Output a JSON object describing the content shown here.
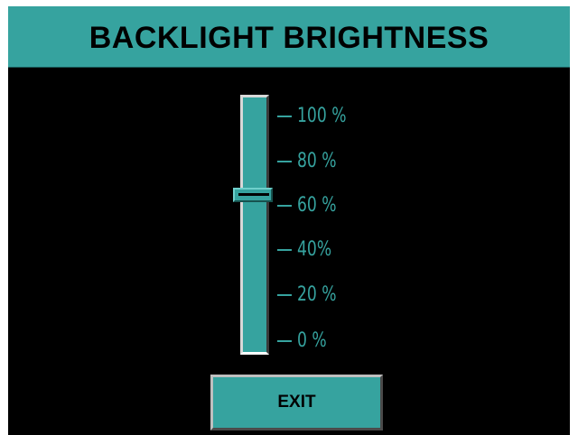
{
  "header": {
    "title": "BACKLIGHT BRIGHTNESS"
  },
  "brightness": {
    "level_percent": 65,
    "scale_labels": [
      "100 %",
      "80 %",
      "60 %",
      "40%",
      "20 %",
      "0 %"
    ]
  },
  "footer": {
    "exit_label": "EXIT"
  },
  "colors": {
    "accent": "#36a39f",
    "background": "#000000"
  }
}
